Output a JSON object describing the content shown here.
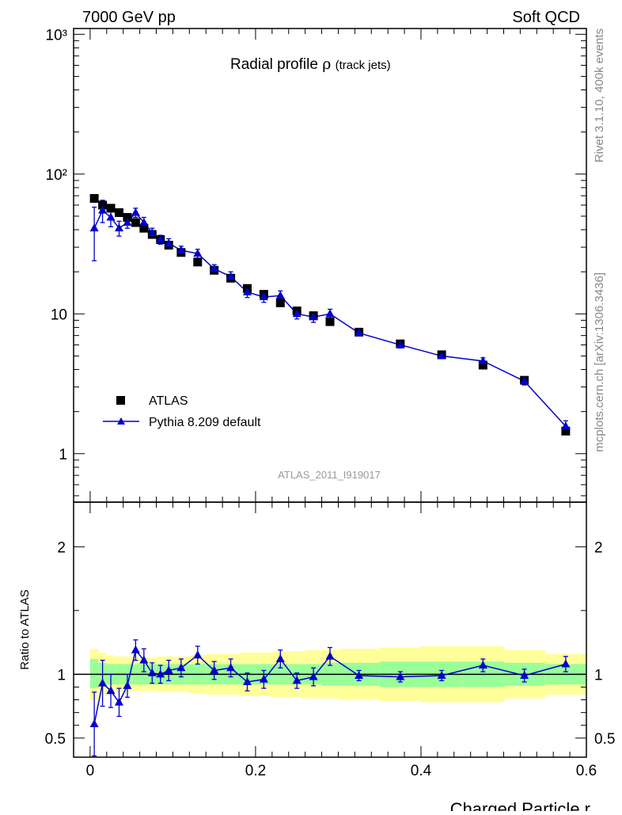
{
  "header": {
    "left": "7000 GeV pp",
    "right": "Soft QCD"
  },
  "side_labels": {
    "top": "Rivet 3.1.10,  400k events",
    "bottom": "mcplots.cern.ch [arXiv:1306.3436]"
  },
  "colors": {
    "atlas": "#000000",
    "pythia": "#0000cc",
    "band_inner": "#99ff99",
    "band_outer": "#ffff99"
  },
  "chart_data": [
    {
      "type": "scatter",
      "panel": "main",
      "title": "Radial profile",
      "title_symbol": "ρ",
      "title_suffix": "(track jets)",
      "watermark": "ATLAS_2011_I919017",
      "xlim": [
        -0.02,
        0.6
      ],
      "ylim": [
        0.45,
        1100
      ],
      "yscale": "log",
      "ytick_labels": [
        "1",
        "10",
        "10²",
        "10³"
      ],
      "legend": {
        "position": "bottom-left",
        "entries": [
          "ATLAS",
          "Pythia 8.209 default"
        ]
      },
      "series": [
        {
          "name": "ATLAS",
          "marker": "square",
          "x": [
            0.005,
            0.015,
            0.025,
            0.035,
            0.045,
            0.055,
            0.065,
            0.075,
            0.085,
            0.095,
            0.11,
            0.13,
            0.15,
            0.17,
            0.19,
            0.21,
            0.23,
            0.25,
            0.27,
            0.29,
            0.325,
            0.375,
            0.425,
            0.475,
            0.525,
            0.575
          ],
          "y": [
            67,
            60,
            57,
            53,
            49,
            45,
            41,
            37,
            34,
            31,
            27.5,
            23.5,
            20.5,
            18,
            15.2,
            13.8,
            12,
            10.5,
            9.7,
            8.8,
            7.4,
            6.1,
            5.1,
            4.3,
            3.35,
            1.45
          ]
        },
        {
          "name": "Pythia 8.209 default",
          "marker": "triangle",
          "x": [
            0.005,
            0.015,
            0.025,
            0.035,
            0.045,
            0.055,
            0.065,
            0.075,
            0.085,
            0.095,
            0.11,
            0.13,
            0.15,
            0.17,
            0.19,
            0.21,
            0.23,
            0.25,
            0.27,
            0.29,
            0.325,
            0.375,
            0.425,
            0.475,
            0.525,
            0.575
          ],
          "y": [
            41,
            55,
            49,
            41,
            45,
            53,
            45,
            38,
            34,
            32,
            28.5,
            27,
            21,
            18.5,
            14.3,
            13.2,
            13.5,
            10,
            9.5,
            10,
            7.3,
            6.0,
            5.0,
            4.6,
            3.3,
            1.57
          ],
          "err": [
            17,
            10,
            7,
            5,
            4,
            4,
            4,
            3,
            2.5,
            2.5,
            2,
            2,
            1.5,
            1.5,
            1.2,
            1.1,
            1.1,
            0.8,
            0.8,
            0.8,
            0.3,
            0.3,
            0.2,
            0.25,
            0.2,
            0.15
          ]
        }
      ]
    },
    {
      "type": "scatter",
      "panel": "ratio",
      "ylabel": "Ratio to ATLAS",
      "xlabel": "Charged Particle r",
      "xlim": [
        -0.02,
        0.6
      ],
      "ylim": [
        0.35,
        2.35
      ],
      "xtick_labels": [
        "0",
        "0.2",
        "0.4",
        "0.6"
      ],
      "ytick_labels": [
        "0.5",
        "1",
        "2"
      ],
      "bands": {
        "x_edges": [
          0,
          0.01,
          0.02,
          0.03,
          0.04,
          0.05,
          0.06,
          0.07,
          0.08,
          0.09,
          0.1,
          0.12,
          0.14,
          0.16,
          0.18,
          0.2,
          0.22,
          0.24,
          0.26,
          0.28,
          0.3,
          0.35,
          0.4,
          0.45,
          0.5,
          0.55,
          0.6
        ],
        "inner_lo": [
          0.89,
          0.91,
          0.92,
          0.92,
          0.92,
          0.92,
          0.92,
          0.92,
          0.92,
          0.92,
          0.92,
          0.92,
          0.92,
          0.92,
          0.92,
          0.92,
          0.92,
          0.92,
          0.92,
          0.91,
          0.91,
          0.9,
          0.9,
          0.9,
          0.91,
          0.92
        ],
        "inner_hi": [
          1.12,
          1.09,
          1.08,
          1.08,
          1.08,
          1.08,
          1.08,
          1.08,
          1.08,
          1.08,
          1.08,
          1.08,
          1.08,
          1.08,
          1.08,
          1.08,
          1.08,
          1.08,
          1.08,
          1.09,
          1.09,
          1.1,
          1.1,
          1.1,
          1.09,
          1.08
        ],
        "outer_lo": [
          0.8,
          0.83,
          0.85,
          0.86,
          0.86,
          0.87,
          0.87,
          0.87,
          0.86,
          0.86,
          0.86,
          0.85,
          0.84,
          0.84,
          0.83,
          0.83,
          0.82,
          0.82,
          0.81,
          0.81,
          0.8,
          0.79,
          0.78,
          0.78,
          0.81,
          0.84
        ],
        "outer_hi": [
          1.2,
          1.17,
          1.15,
          1.14,
          1.14,
          1.13,
          1.13,
          1.13,
          1.14,
          1.14,
          1.14,
          1.15,
          1.16,
          1.16,
          1.17,
          1.17,
          1.18,
          1.18,
          1.19,
          1.19,
          1.2,
          1.21,
          1.22,
          1.22,
          1.19,
          1.16
        ]
      },
      "series": [
        {
          "name": "Pythia 8.209 default",
          "x": [
            0.005,
            0.015,
            0.025,
            0.035,
            0.045,
            0.055,
            0.065,
            0.075,
            0.085,
            0.095,
            0.11,
            0.13,
            0.15,
            0.17,
            0.19,
            0.21,
            0.23,
            0.25,
            0.27,
            0.29,
            0.325,
            0.375,
            0.425,
            0.475,
            0.525,
            0.575
          ],
          "y": [
            0.61,
            0.93,
            0.87,
            0.78,
            0.91,
            1.19,
            1.11,
            1.01,
            1.0,
            1.03,
            1.05,
            1.15,
            1.03,
            1.05,
            0.94,
            0.96,
            1.12,
            0.95,
            0.98,
            1.14,
            0.99,
            0.98,
            0.99,
            1.07,
            0.99,
            1.08
          ],
          "err": [
            0.25,
            0.18,
            0.13,
            0.11,
            0.09,
            0.08,
            0.09,
            0.08,
            0.07,
            0.08,
            0.07,
            0.07,
            0.07,
            0.07,
            0.07,
            0.07,
            0.07,
            0.06,
            0.07,
            0.07,
            0.04,
            0.04,
            0.04,
            0.05,
            0.05,
            0.06
          ]
        }
      ]
    }
  ]
}
